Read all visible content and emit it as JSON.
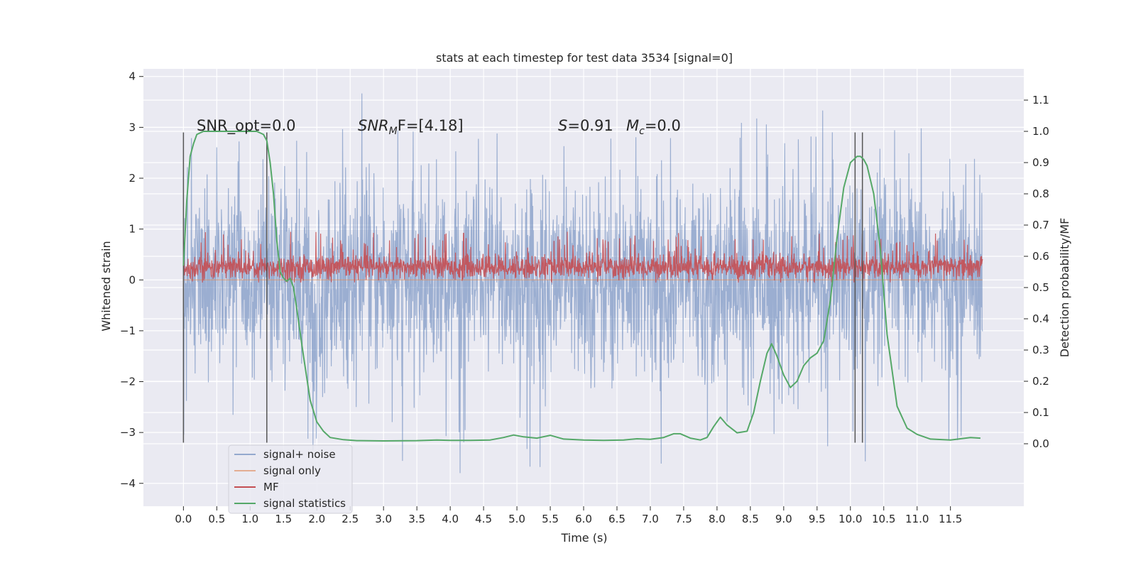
{
  "chart_data": {
    "type": "line",
    "title": "stats at each timestep for test data 3534 [signal=0]",
    "xlabel": "Time (s)",
    "ylabel": "Whitened strain",
    "y2label": "Detection probability/MF",
    "xlim": [
      -0.6,
      12.6
    ],
    "ylim": [
      -4.45,
      4.15
    ],
    "y2lim": [
      -0.2,
      1.2
    ],
    "x_ticks": [
      0.0,
      0.5,
      1.0,
      1.5,
      2.0,
      2.5,
      3.0,
      3.5,
      4.0,
      4.5,
      5.0,
      5.5,
      6.0,
      6.5,
      7.0,
      7.5,
      8.0,
      8.5,
      9.0,
      9.5,
      10.0,
      10.5,
      11.0,
      11.5
    ],
    "x_tick_labels": [
      "0.0",
      "0.5",
      "1.0",
      "1.5",
      "2.0",
      "2.5",
      "3.0",
      "3.5",
      "4.0",
      "4.5",
      "5.0",
      "5.5",
      "6.0",
      "6.5",
      "7.0",
      "7.5",
      "8.0",
      "8.5",
      "9.0",
      "9.5",
      "10.0",
      "10.5",
      "11.0",
      "11.5"
    ],
    "y_ticks": [
      -4,
      -3,
      -2,
      -1,
      0,
      1,
      2,
      3,
      4
    ],
    "y_tick_labels": [
      "−4",
      "−3",
      "−2",
      "−1",
      "0",
      "1",
      "2",
      "3",
      "4"
    ],
    "y2_ticks": [
      0.0,
      0.1,
      0.2,
      0.3,
      0.4,
      0.5,
      0.6,
      0.7,
      0.8,
      0.9,
      1.0,
      1.1
    ],
    "y2_tick_labels": [
      "0.0",
      "0.1",
      "0.2",
      "0.3",
      "0.4",
      "0.5",
      "0.6",
      "0.7",
      "0.8",
      "0.9",
      "1.0",
      "1.1"
    ],
    "grid": true,
    "legend_position": "lower-left",
    "annotations": {
      "snr_opt": "SNR_opt=0.0",
      "snr_mf_main": "SNR",
      "snr_mf_sub": "M",
      "snr_mf_rest": "F=[4.18]",
      "s_main": "S",
      "s_rest": "=0.91",
      "mc_main": "M",
      "mc_sub": "c",
      "mc_rest": "=0.0"
    },
    "colors": {
      "background": "#eaeaf2",
      "grid": "#ffffff",
      "signal_noise": "#4c72b0",
      "signal_only": "#dd8452",
      "mf": "#c44e52",
      "signal_statistics": "#55a868",
      "vlines": "#555555"
    },
    "series": [
      {
        "name": "signal+ noise",
        "kind": "noise",
        "x_range": [
          0.0,
          11.98
        ],
        "envelope_y": [
          -2.4,
          2.4
        ],
        "peak_y": [
          -3.8,
          3.75
        ]
      },
      {
        "name": "signal only",
        "kind": "flat",
        "y": 0.0
      },
      {
        "name": "MF",
        "kind": "noise",
        "x_range": [
          0.0,
          11.98
        ],
        "envelope_y": [
          -0.05,
          0.55
        ],
        "peak_y": [
          -0.05,
          1.0
        ]
      },
      {
        "name": "signal statistics",
        "kind": "line",
        "axis": "right",
        "x": [
          0.0,
          0.05,
          0.1,
          0.15,
          0.2,
          0.3,
          0.5,
          0.8,
          1.0,
          1.1,
          1.2,
          1.25,
          1.3,
          1.35,
          1.4,
          1.45,
          1.5,
          1.55,
          1.6,
          1.65,
          1.7,
          1.8,
          1.9,
          2.0,
          2.1,
          2.2,
          2.4,
          2.6,
          3.0,
          3.5,
          3.8,
          4.0,
          4.3,
          4.6,
          4.8,
          4.95,
          5.1,
          5.3,
          5.5,
          5.7,
          6.0,
          6.3,
          6.6,
          6.8,
          7.0,
          7.2,
          7.35,
          7.45,
          7.6,
          7.75,
          7.85,
          7.95,
          8.05,
          8.15,
          8.3,
          8.45,
          8.55,
          8.65,
          8.75,
          8.82,
          8.9,
          9.0,
          9.1,
          9.2,
          9.3,
          9.4,
          9.5,
          9.6,
          9.7,
          9.8,
          9.9,
          10.0,
          10.1,
          10.15,
          10.2,
          10.25,
          10.35,
          10.45,
          10.55,
          10.7,
          10.85,
          11.0,
          11.2,
          11.5,
          11.8,
          11.95
        ],
        "y": [
          0.57,
          0.78,
          0.92,
          0.96,
          0.99,
          1.0,
          1.0,
          1.0,
          1.0,
          1.0,
          0.99,
          0.97,
          0.9,
          0.8,
          0.65,
          0.55,
          0.53,
          0.52,
          0.53,
          0.5,
          0.43,
          0.28,
          0.14,
          0.07,
          0.04,
          0.02,
          0.013,
          0.01,
          0.009,
          0.01,
          0.012,
          0.011,
          0.011,
          0.012,
          0.02,
          0.028,
          0.022,
          0.018,
          0.027,
          0.015,
          0.012,
          0.011,
          0.012,
          0.016,
          0.014,
          0.02,
          0.032,
          0.032,
          0.018,
          0.012,
          0.02,
          0.055,
          0.085,
          0.06,
          0.035,
          0.04,
          0.1,
          0.2,
          0.29,
          0.32,
          0.28,
          0.22,
          0.18,
          0.2,
          0.25,
          0.275,
          0.29,
          0.33,
          0.46,
          0.66,
          0.82,
          0.9,
          0.92,
          0.92,
          0.91,
          0.89,
          0.8,
          0.62,
          0.35,
          0.12,
          0.05,
          0.03,
          0.015,
          0.012,
          0.02,
          0.018
        ]
      }
    ],
    "vlines_x": [
      0.0,
      1.25,
      10.07,
      10.18
    ],
    "vlines_y_range": [
      -3.2,
      2.9
    ]
  }
}
